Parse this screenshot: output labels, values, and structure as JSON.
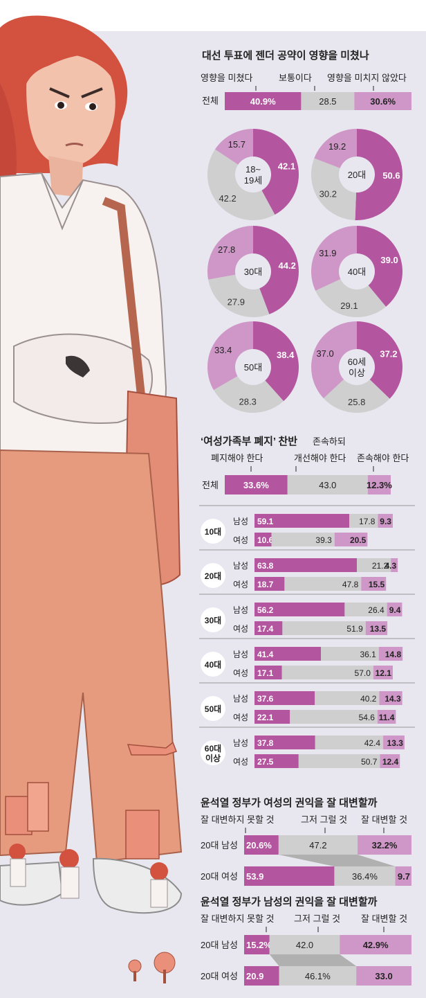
{
  "colors": {
    "influenced": "#b4559f",
    "normal": "#cfcfcf",
    "not_influenced": "#cf97c7",
    "background": "#e8e7ef",
    "dark_text": "#222222"
  },
  "section1": {
    "title": "대선 투표에 젠더 공약이 영향을 미쳤나",
    "legend": [
      "영향을 미쳤다",
      "보통이다",
      "영향을 미치지 않았다"
    ],
    "total_label": "전체",
    "total_labels": [
      "40.9%",
      "28.5",
      "30.6%"
    ]
  },
  "section2": {
    "title": "‘여성가족부 폐지’ 찬반",
    "legend": [
      "폐지해야 한다",
      "존속하되 개선해야 한다",
      "존속해야 한다"
    ],
    "total_label": "전체",
    "total_labels": [
      "33.6%",
      "43.0",
      "12.3%"
    ]
  },
  "section3": {
    "title": "윤석열 정부가 여성의 권익을 잘 대변할까",
    "legend": [
      "잘 대변하지 못할 것",
      "그저 그럴 것",
      "잘 대변할 것"
    ],
    "row_labels": [
      "20대 남성",
      "20대 여성"
    ],
    "value_labels": [
      [
        "20.6%",
        "47.2",
        "32.2%"
      ],
      [
        "53.9",
        "36.4%",
        "9.7"
      ]
    ]
  },
  "section4": {
    "title": "윤석열 정부가 남성의 권익을 잘 대변할까",
    "legend": [
      "잘 대변하지 못할 것",
      "그저 그럴 것",
      "잘 대변할 것"
    ],
    "row_labels": [
      "20대 남성",
      "20대 여성"
    ],
    "value_labels": [
      [
        "15.2%",
        "42.0",
        "42.9%"
      ],
      [
        "20.9",
        "46.1%",
        "33.0"
      ]
    ]
  },
  "chart_data": [
    {
      "type": "bar",
      "orientation": "horizontal",
      "stacked": true,
      "title": "대선 투표에 젠더 공약이 영향을 미쳤나",
      "categories": [
        "전체"
      ],
      "series": [
        {
          "name": "영향을 미쳤다",
          "values": [
            40.9
          ]
        },
        {
          "name": "보통이다",
          "values": [
            28.5
          ]
        },
        {
          "name": "영향을 미치지 않았다",
          "values": [
            30.6
          ]
        }
      ]
    },
    {
      "type": "pie",
      "title": "대선 투표에 젠더 공약이 영향을 미쳤나",
      "charts": [
        {
          "center_label": "18~ 19세",
          "labels": [
            "영향을 미쳤다",
            "보통이다",
            "영향을 미치지 않았다"
          ],
          "values": [
            42.1,
            42.2,
            15.7
          ]
        },
        {
          "center_label": "20대",
          "labels": [
            "영향을 미쳤다",
            "보통이다",
            "영향을 미치지 않았다"
          ],
          "values": [
            50.6,
            30.2,
            19.2
          ]
        },
        {
          "center_label": "30대",
          "labels": [
            "영향을 미쳤다",
            "보통이다",
            "영향을 미치지 않았다"
          ],
          "values": [
            44.2,
            27.9,
            27.8
          ]
        },
        {
          "center_label": "40대",
          "labels": [
            "영향을 미쳤다",
            "보통이다",
            "영향을 미치지 않았다"
          ],
          "values": [
            39.0,
            29.1,
            31.9
          ]
        },
        {
          "center_label": "50대",
          "labels": [
            "영향을 미쳤다",
            "보통이다",
            "영향을 미치지 않았다"
          ],
          "values": [
            38.4,
            28.3,
            33.4
          ]
        },
        {
          "center_label": "60세 이상",
          "labels": [
            "영향을 미쳤다",
            "보통이다",
            "영향을 미치지 않았다"
          ],
          "values": [
            37.2,
            25.8,
            37.0
          ]
        }
      ]
    },
    {
      "type": "bar",
      "orientation": "horizontal",
      "stacked": true,
      "title": "‘여성가족부 폐지’ 찬반",
      "categories": [
        "전체"
      ],
      "series": [
        {
          "name": "폐지해야 한다",
          "values": [
            33.6
          ]
        },
        {
          "name": "존속하되 개선해야 한다",
          "values": [
            43.0
          ]
        },
        {
          "name": "존속해야 한다",
          "values": [
            12.3
          ]
        }
      ]
    },
    {
      "type": "bar",
      "orientation": "horizontal",
      "stacked": true,
      "title": "‘여성가족부 폐지’ 찬반",
      "groups": [
        {
          "label": "10대",
          "rows": [
            {
              "label": "남성",
              "values": [
                59.1,
                17.8,
                9.3
              ]
            },
            {
              "label": "여성",
              "values": [
                10.6,
                39.3,
                20.5
              ]
            }
          ]
        },
        {
          "label": "20대",
          "rows": [
            {
              "label": "남성",
              "values": [
                63.8,
                21.2,
                4.3
              ]
            },
            {
              "label": "여성",
              "values": [
                18.7,
                47.8,
                15.5
              ]
            }
          ]
        },
        {
          "label": "30대",
          "rows": [
            {
              "label": "남성",
              "values": [
                56.2,
                26.4,
                9.4
              ]
            },
            {
              "label": "여성",
              "values": [
                17.4,
                51.9,
                13.5
              ]
            }
          ]
        },
        {
          "label": "40대",
          "rows": [
            {
              "label": "남성",
              "values": [
                41.4,
                36.1,
                14.8
              ]
            },
            {
              "label": "여성",
              "values": [
                17.1,
                57.0,
                12.1
              ]
            }
          ]
        },
        {
          "label": "50대",
          "rows": [
            {
              "label": "남성",
              "values": [
                37.6,
                40.2,
                14.3
              ]
            },
            {
              "label": "여성",
              "values": [
                22.1,
                54.6,
                11.4
              ]
            }
          ]
        },
        {
          "label": "60대 이상",
          "rows": [
            {
              "label": "남성",
              "values": [
                37.8,
                42.4,
                13.3
              ]
            },
            {
              "label": "여성",
              "values": [
                27.5,
                50.7,
                12.4
              ]
            }
          ]
        }
      ]
    },
    {
      "type": "bar",
      "orientation": "horizontal",
      "stacked": true,
      "title": "윤석열 정부가 여성의 권익을 잘 대변할까",
      "categories": [
        "20대 남성",
        "20대 여성"
      ],
      "series": [
        {
          "name": "잘 대변하지 못할 것",
          "values": [
            20.6,
            53.9
          ]
        },
        {
          "name": "그저 그럴 것",
          "values": [
            47.2,
            36.4
          ]
        },
        {
          "name": "잘 대변할 것",
          "values": [
            32.2,
            9.7
          ]
        }
      ]
    },
    {
      "type": "bar",
      "orientation": "horizontal",
      "stacked": true,
      "title": "윤석열 정부가 남성의 권익을 잘 대변할까",
      "categories": [
        "20대 남성",
        "20대 여성"
      ],
      "series": [
        {
          "name": "잘 대변하지 못할 것",
          "values": [
            15.2,
            20.9
          ]
        },
        {
          "name": "그저 그럴 것",
          "values": [
            42.0,
            46.1
          ]
        },
        {
          "name": "잘 대변할 것",
          "values": [
            42.9,
            33.0
          ]
        }
      ]
    }
  ]
}
